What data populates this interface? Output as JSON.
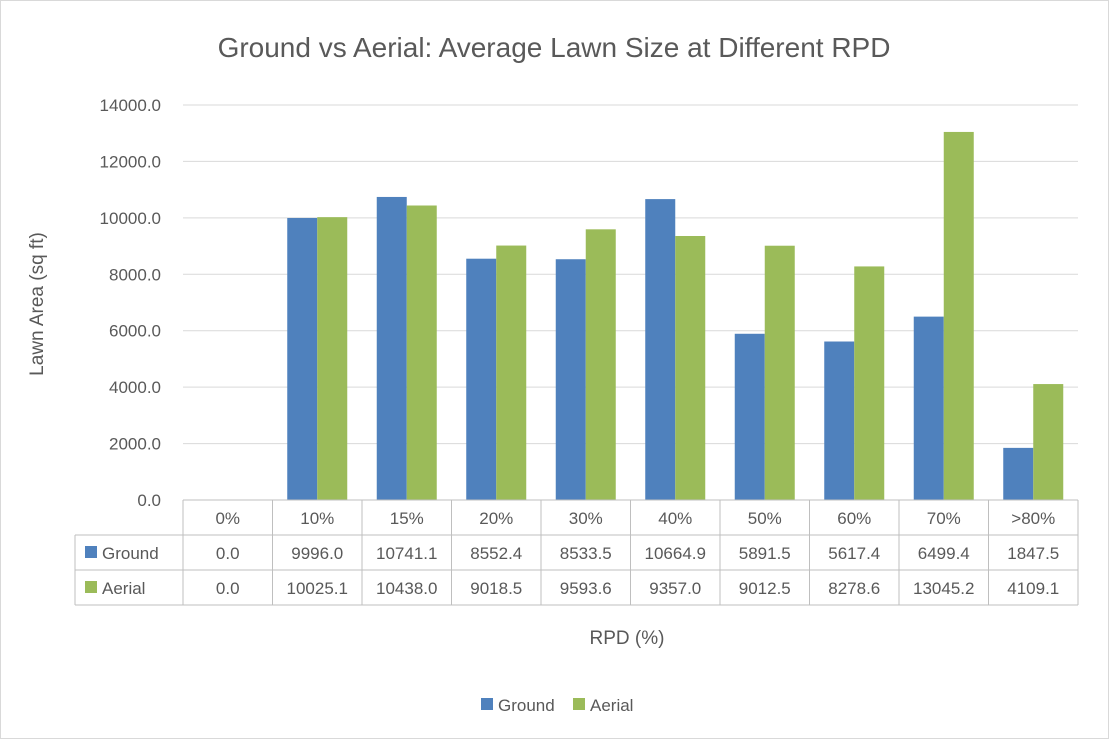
{
  "chart_data": {
    "type": "bar",
    "title": "Ground vs Aerial: Average Lawn Size at Different RPD",
    "xlabel": "RPD (%)",
    "ylabel": "Lawn Area (sq ft)",
    "ylim": [
      0,
      14000
    ],
    "yticks": [
      "0.0",
      "2000.0",
      "4000.0",
      "6000.0",
      "8000.0",
      "10000.0",
      "12000.0",
      "14000.0"
    ],
    "grid": true,
    "legend_position": "bottom",
    "categories": [
      "0%",
      "10%",
      "15%",
      "20%",
      "30%",
      "40%",
      "50%",
      "60%",
      "70%",
      ">80%"
    ],
    "series": [
      {
        "name": "Ground",
        "color": "#4f81bd",
        "values": [
          0.0,
          9996.0,
          10741.1,
          8552.4,
          8533.5,
          10664.9,
          5891.5,
          5617.4,
          6499.4,
          1847.5
        ],
        "labels": [
          "0.0",
          "9996.0",
          "10741.1",
          "8552.4",
          "8533.5",
          "10664.9",
          "5891.5",
          "5617.4",
          "6499.4",
          "1847.5"
        ]
      },
      {
        "name": "Aerial",
        "color": "#9bbb59",
        "values": [
          0.0,
          10025.1,
          10438.0,
          9018.5,
          9593.6,
          9357.0,
          9012.5,
          8278.6,
          13045.2,
          4109.1
        ],
        "labels": [
          "0.0",
          "10025.1",
          "10438.0",
          "9018.5",
          "9593.6",
          "9357.0",
          "9012.5",
          "8278.6",
          "13045.2",
          "4109.1"
        ]
      }
    ]
  }
}
